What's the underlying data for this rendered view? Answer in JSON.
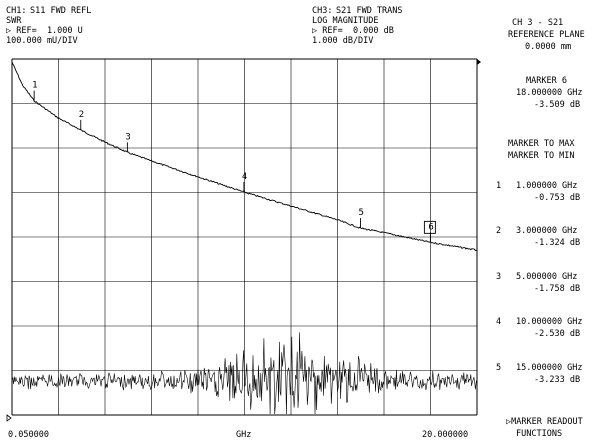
{
  "header": {
    "ch1": {
      "label": "CH1:",
      "param": "S11 FWD REFL",
      "format": "SWR",
      "ref": "▷ REF=  1.000 U",
      "scale": "100.000 mU/DIV"
    },
    "ch3": {
      "label": "CH3:",
      "param": "S21 FWD TRANS",
      "format": "LOG MAGNITUDE",
      "ref": "▷ REF=  0.000 dB",
      "scale": "1.000 dB/DIV"
    }
  },
  "right_panel": {
    "channel": "CH 3 - S21",
    "reference_plane_label": "REFERENCE PLANE",
    "reference_plane_value": "0.0000 mm",
    "active_marker": {
      "name": "MARKER 6",
      "freq": "18.000000 GHz",
      "value": "-3.509 dB"
    },
    "menu": [
      "MARKER TO MAX",
      "MARKER TO MIN"
    ],
    "markers": [
      {
        "num": "1",
        "freq": "1.000000 GHz",
        "value": "-0.753 dB"
      },
      {
        "num": "2",
        "freq": "3.000000 GHz",
        "value": "-1.324 dB"
      },
      {
        "num": "3",
        "freq": "5.000000 GHz",
        "value": "-1.758 dB"
      },
      {
        "num": "4",
        "freq": "10.000000 GHz",
        "value": "-2.530 dB"
      },
      {
        "num": "5",
        "freq": "15.000000 GHz",
        "value": "-3.233 dB"
      }
    ],
    "footer_line1": "▷MARKER READOUT",
    "footer_line2": "FUNCTIONS"
  },
  "footer": {
    "start": "0.050000",
    "unit": "GHz",
    "stop": "20.000000"
  },
  "chart_data": {
    "type": "line",
    "x_unit": "GHz",
    "xlim": [
      0.05,
      20.0
    ],
    "series": [
      {
        "x": [
          0.05,
          0.5,
          1.0,
          2.0,
          3.0,
          4.0,
          5.0,
          6.0,
          8.0,
          10.0,
          12.0,
          14.0,
          15.0,
          16.0,
          18.0,
          20.0
        ],
        "values": [
          0.0,
          -0.45,
          -0.753,
          -1.08,
          -1.324,
          -1.55,
          -1.758,
          -1.92,
          -2.23,
          -2.53,
          -2.8,
          -3.07,
          -3.233,
          -3.32,
          -3.509,
          -3.66
        ]
      }
    ],
    "markers": [
      {
        "label": "1",
        "x": 1.0,
        "y": -0.753
      },
      {
        "label": "2",
        "x": 3.0,
        "y": -1.324
      },
      {
        "label": "3",
        "x": 5.0,
        "y": -1.758
      },
      {
        "label": "4",
        "x": 10.0,
        "y": -2.53
      },
      {
        "label": "5",
        "x": 15.0,
        "y": -3.233
      },
      {
        "label": "6",
        "x": 18.0,
        "y": -3.509,
        "active": true
      }
    ],
    "grid": true
  }
}
